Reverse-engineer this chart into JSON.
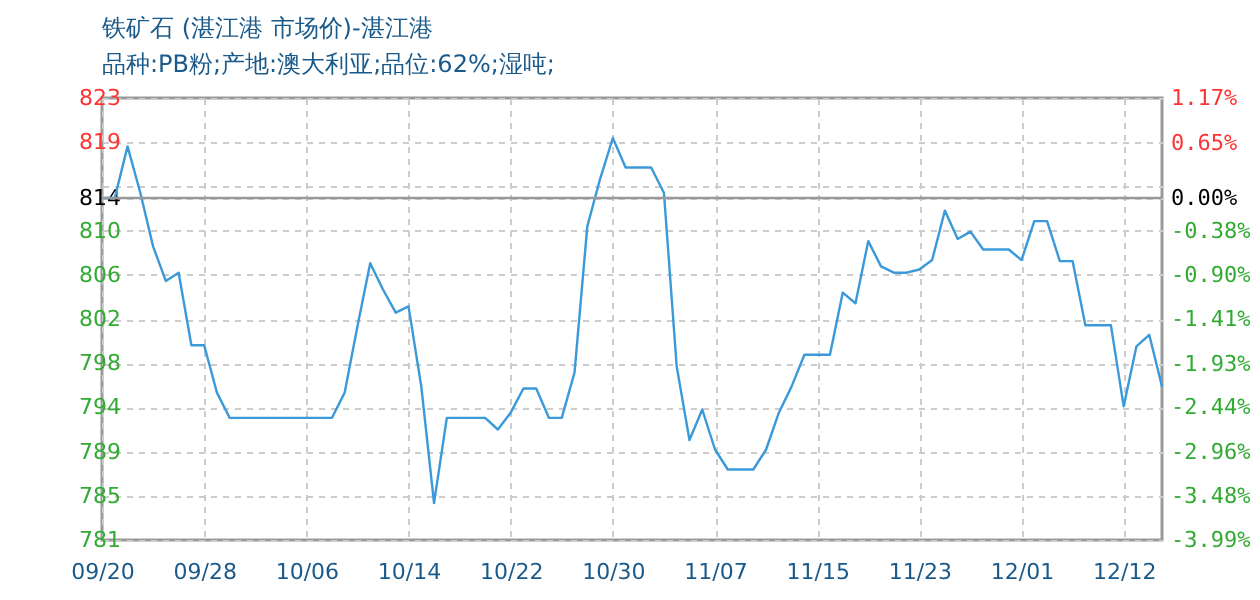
{
  "chart_data": {
    "type": "line",
    "title": "铁矿石 (湛江港 市场价)-湛江港",
    "subtitle": "品种:PB粉;产地:澳大利亚;品位:62%;湿吨;",
    "categories": [
      "09/20",
      null,
      null,
      null,
      null,
      null,
      null,
      null,
      "09/28",
      null,
      null,
      null,
      null,
      null,
      null,
      null,
      "10/06",
      null,
      null,
      null,
      null,
      null,
      null,
      null,
      "10/14",
      null,
      null,
      null,
      null,
      null,
      null,
      null,
      "10/22",
      null,
      null,
      null,
      null,
      null,
      null,
      null,
      "10/30",
      null,
      null,
      null,
      null,
      null,
      null,
      null,
      "11/07",
      null,
      null,
      null,
      null,
      null,
      null,
      null,
      "11/15",
      null,
      null,
      null,
      null,
      null,
      null,
      null,
      "11/23",
      null,
      null,
      null,
      null,
      null,
      null,
      null,
      "12/01",
      null,
      null,
      null,
      null,
      null,
      null,
      null,
      "12/12",
      null,
      null,
      null
    ],
    "series": [
      {
        "color": "#3a9ad9",
        "values": [
          813.5,
          813.5,
          818.4,
          814.0,
          808.9,
          805.6,
          806.4,
          799.5,
          799.5,
          795.0,
          792.6,
          792.6,
          792.6,
          792.6,
          792.6,
          792.6,
          792.6,
          792.6,
          792.6,
          795.0,
          801.3,
          807.3,
          804.8,
          802.6,
          803.2,
          795.6,
          784.5,
          792.6,
          792.6,
          792.6,
          792.6,
          791.5,
          793.1,
          795.4,
          795.4,
          792.6,
          792.6,
          796.9,
          810.8,
          815.3,
          819.2,
          816.4,
          816.4,
          816.4,
          814.0,
          797.5,
          790.5,
          793.4,
          789.6,
          787.7,
          787.7,
          787.7,
          789.6,
          793.1,
          795.6,
          798.6,
          798.6,
          798.6,
          804.5,
          803.5,
          809.4,
          807.0,
          806.4,
          806.4,
          806.7,
          807.6,
          812.3,
          809.6,
          810.3,
          808.6,
          808.6,
          808.6,
          807.6,
          811.3,
          811.3,
          807.5,
          807.5,
          801.4,
          801.4,
          801.4,
          793.7,
          799.4,
          800.5,
          795.6
        ]
      }
    ],
    "ylim": [
      781,
      823
    ],
    "yticks": [
      823,
      {
        "value": 818.8,
        "label": "819"
      },
      {
        "value": 814.6,
        "label": null
      },
      {
        "value": 813.5,
        "label": "814"
      },
      {
        "value": 810.4,
        "label": "810"
      },
      {
        "value": 806.2,
        "label": "806"
      },
      802,
      {
        "value": 797.8,
        "label": "798"
      },
      {
        "value": 793.6,
        "label": "794"
      },
      {
        "value": 789.4,
        "label": "789"
      },
      {
        "value": 785.2,
        "label": "785"
      },
      781
    ],
    "y2lim": [
      -3.99,
      1.17
    ],
    "y2ticks": [
      {
        "value": 1.17,
        "label": "1.17%"
      },
      {
        "value": 0.65,
        "label": "0.65%"
      },
      {
        "value": 0,
        "label": "0.00%"
      },
      {
        "value": -0.38,
        "label": "-0.38%"
      },
      {
        "value": -0.9,
        "label": "-0.90%"
      },
      {
        "value": -1.41,
        "label": "-1.41%"
      },
      {
        "value": -1.93,
        "label": "-1.93%"
      },
      {
        "value": -2.44,
        "label": "-2.44%"
      },
      {
        "value": -2.96,
        "label": "-2.96%"
      },
      {
        "value": -3.48,
        "label": "-3.48%"
      },
      {
        "value": -3.99,
        "label": "-3.99%"
      }
    ],
    "ref_lines": [
      {
        "axis": "y",
        "value": 813.5,
        "color": "#999999",
        "line_style": "solid"
      }
    ],
    "grid": true,
    "marker": "none",
    "line_style": "solid",
    "legend": false
  }
}
